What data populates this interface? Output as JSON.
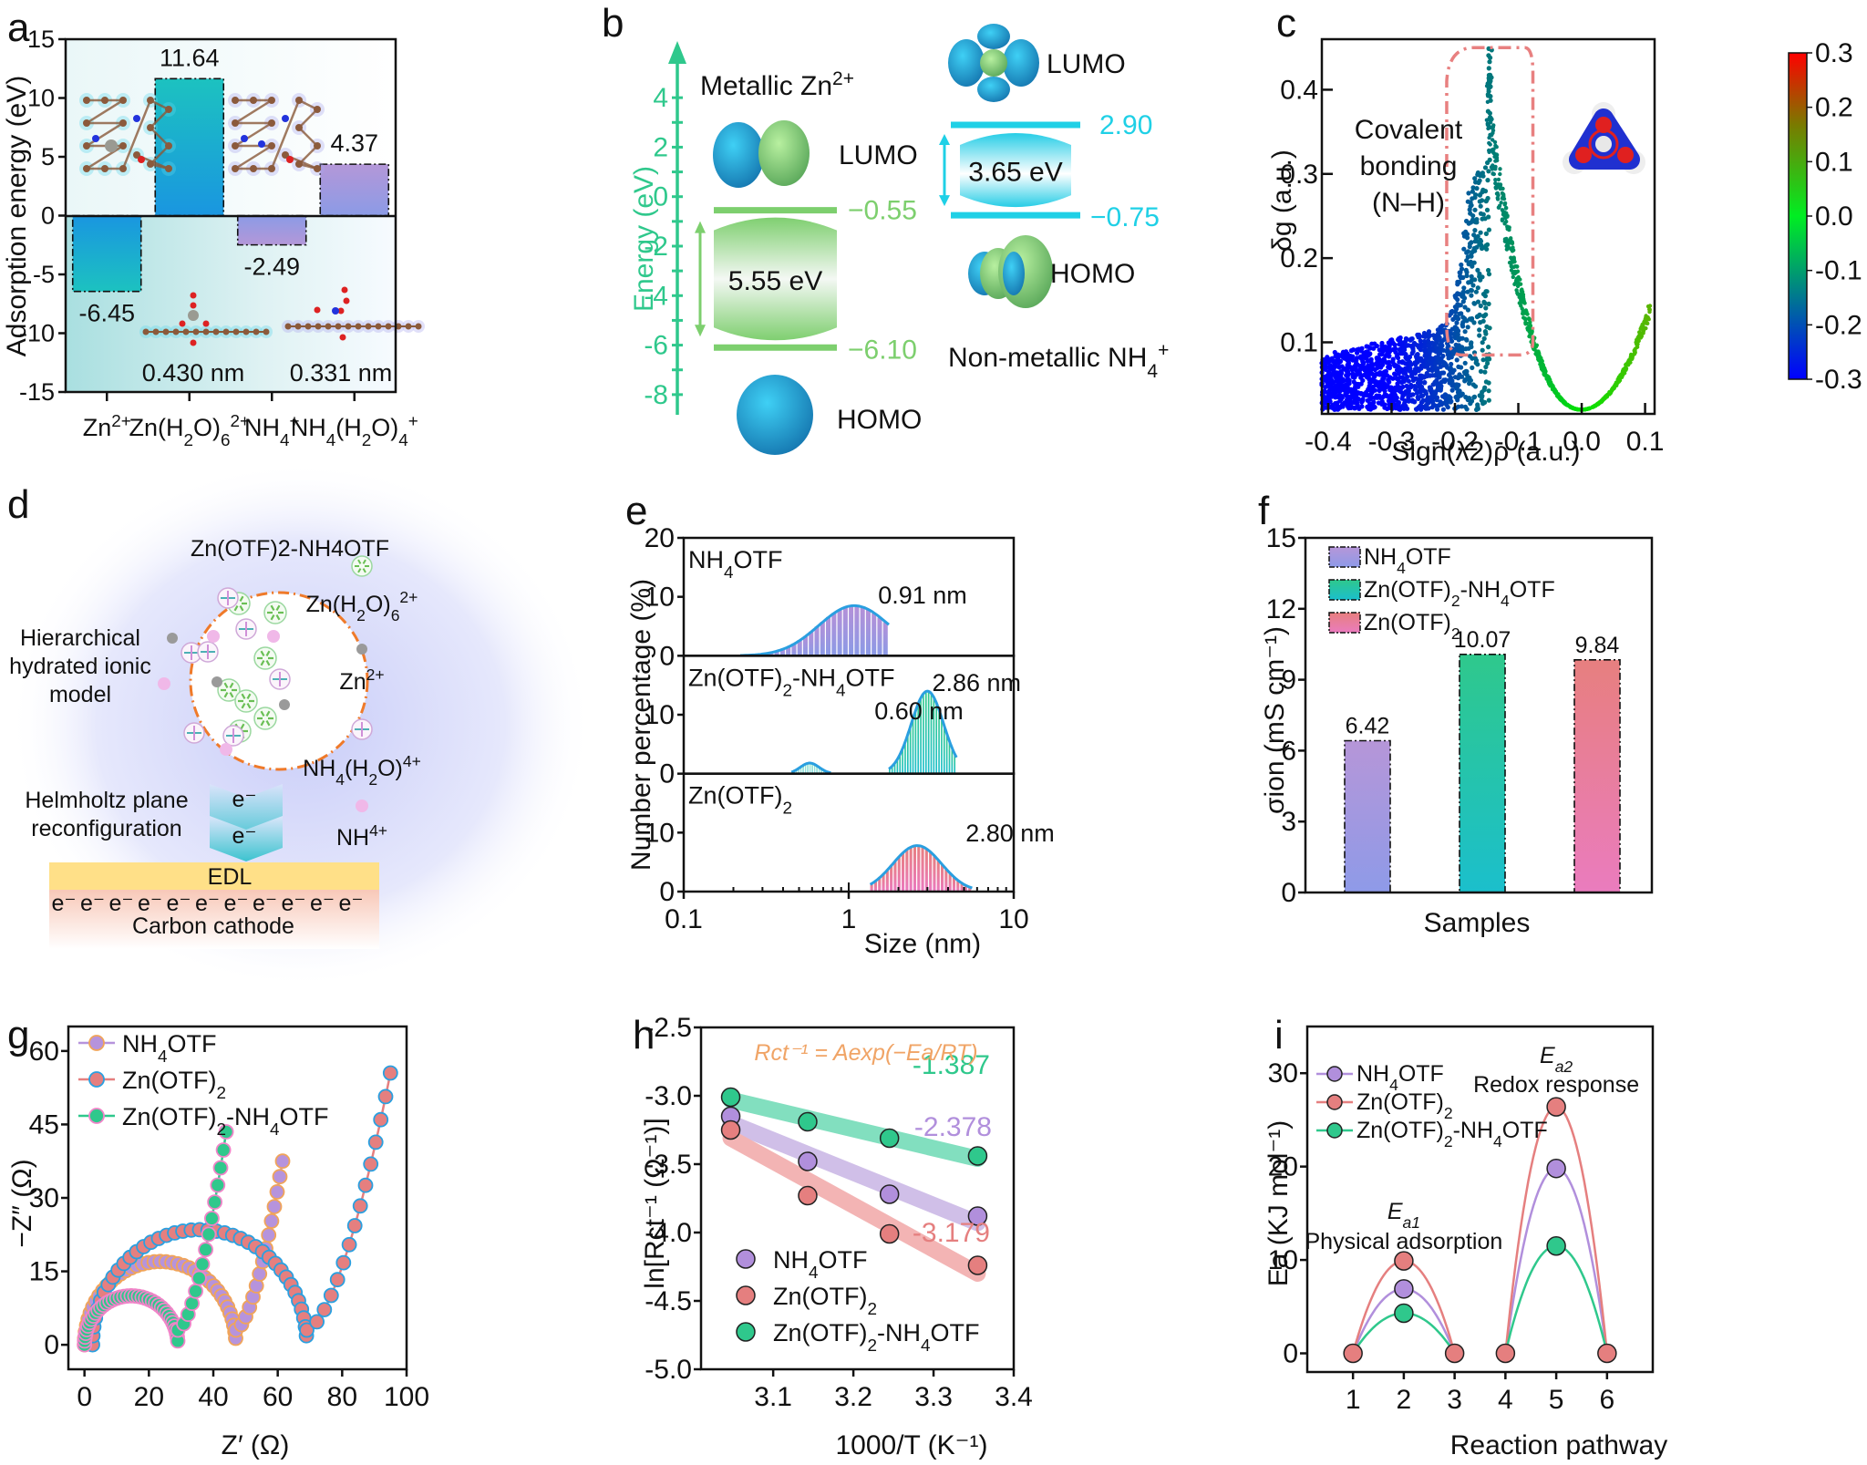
{
  "panels": {
    "a": {
      "label": "a",
      "chart_data": {
        "type": "bar",
        "ylabel": "Adsorption energy (eV)",
        "ylim": [
          -15,
          15
        ],
        "yticks": [
          15,
          10,
          5,
          0,
          -5,
          -10,
          -15
        ],
        "categories": [
          "Zn2+",
          "Zn(H2O)6 2+",
          "NH4+",
          "NH4(H2O)4+"
        ],
        "category_labels": [
          {
            "base": "Zn",
            "sup": "2+"
          },
          {
            "base": "Zn(H",
            "sub1": "2",
            "mid": "O)",
            "sub2": "6",
            "sup": "2+"
          },
          {
            "base": "NH",
            "sub1": "4",
            "sup": "+"
          },
          {
            "base": "NH",
            "sub1": "4",
            "mid": "(H",
            "sub2": "2",
            "mid2": "O)",
            "sub3": "4",
            "sup": "+"
          }
        ],
        "values": [
          -6.45,
          11.64,
          -2.49,
          4.37
        ],
        "value_labels": [
          "-6.45",
          "11.64",
          "-2.49",
          "4.37"
        ],
        "annotations": [
          "0.430 nm",
          "0.331 nm"
        ]
      }
    },
    "b": {
      "label": "b",
      "chart_data": {
        "type": "diagram",
        "ylabel": "Energy (eV)",
        "ylim": [
          -9,
          5
        ],
        "yticks": [
          4,
          2,
          0,
          -2,
          -4,
          -6,
          -8
        ],
        "systems": [
          {
            "name": "Metallic Zn2+",
            "lumo": -0.55,
            "homo": -6.1,
            "gap_label": "5.55 eV",
            "lumo_label": "−0.55",
            "homo_label": "−6.10",
            "color": "#7dcf6e"
          },
          {
            "name": "Non-metallic NH4+",
            "lumo": 2.9,
            "homo": -0.75,
            "gap_label": "3.65 eV",
            "lumo_label": "2.90",
            "homo_label": "−0.75",
            "color": "#1fd0e6"
          }
        ],
        "orbital_labels": [
          "LUMO",
          "HOMO",
          "LUMO",
          "HOMO"
        ],
        "title_metallic": "Metallic Zn",
        "title_metallic_sup": "2+",
        "title_nonmetallic": "Non-metallic NH",
        "title_nonmetallic_sub": "4",
        "title_nonmetallic_sup": "+"
      }
    },
    "c": {
      "label": "c",
      "chart_data": {
        "type": "scatter",
        "xlabel": "Sign(λ2)ρ (a.u.)",
        "ylabel": "δg (a.u.)",
        "xlim": [
          -0.41,
          0.115
        ],
        "ylim": [
          0.015,
          0.46
        ],
        "xticks": [
          -0.4,
          -0.3,
          -0.2,
          -0.1,
          0.0,
          0.1
        ],
        "xtick_labels": [
          "-0.4",
          "-0.3",
          "-0.2",
          "-0.1",
          "0.0",
          "0.1"
        ],
        "yticks": [
          0.1,
          0.2,
          0.3,
          0.4
        ],
        "ytick_labels": [
          "0.1",
          "0.2",
          "0.3",
          "0.4"
        ],
        "colorbar": {
          "min": -0.3,
          "max": 0.3,
          "ticks": [
            "0.3",
            "0.2",
            "0.1",
            "0.0",
            "-0.1",
            "-0.2",
            "-0.3"
          ]
        },
        "annotation": [
          "Covalent",
          "bonding",
          "(N–H)"
        ],
        "peak": {
          "x": -0.145,
          "y": 0.45
        }
      }
    },
    "d": {
      "label": "d",
      "title": "Zn(OTF)2-NH4OTF",
      "left_text": [
        "Hierarchical",
        "hydrated ionic",
        "model"
      ],
      "helmholtz_text": [
        "Helmholtz plane",
        "reconfiguration"
      ],
      "legend": [
        "Zn(H2O)6 2+",
        "Zn2+",
        "NH4(H2O)4+",
        "NH4+"
      ],
      "edl_label": "EDL",
      "cathode_label": "Carbon cathode",
      "electron": "e⁻",
      "electron_count": 11
    },
    "e": {
      "label": "e",
      "chart_data": {
        "type": "area",
        "xscale": "log",
        "xlabel": "Size (nm)",
        "ylabel": "Number percentage (%)",
        "xlim": [
          0.1,
          10
        ],
        "xtick_labels": [
          "0.1",
          "1",
          "10"
        ],
        "series": [
          {
            "name": "NH4OTF",
            "peak_label": "0.91 nm",
            "ylim": [
              0,
              20
            ],
            "yticks": [
              "20",
              "10",
              "0"
            ],
            "peaks": [
              {
                "center": 1.08,
                "height": 8.5,
                "min": 0.22,
                "max": 1.75
              }
            ],
            "color_top": "#b490d8",
            "color_bottom": "#8a9ae6"
          },
          {
            "name": "Zn(OTF)2-NH4OTF",
            "peak_labels": [
              "0.60 nm",
              "2.86 nm"
            ],
            "ylim": [
              0,
              20
            ],
            "yticks": [
              "10",
              "0"
            ],
            "peaks": [
              {
                "center": 0.58,
                "height": 1.8,
                "min": 0.45,
                "max": 0.78
              },
              {
                "center": 3.0,
                "height": 14,
                "min": 1.75,
                "max": 4.5
              }
            ],
            "color_top": "#34c98a",
            "color_bottom": "#1bbfcc"
          },
          {
            "name": "Zn(OTF)2",
            "peak_label": "2.80 nm",
            "ylim": [
              0,
              20
            ],
            "yticks": [
              "10",
              "0"
            ],
            "peaks": [
              {
                "center": 2.6,
                "height": 7.8,
                "min": 1.35,
                "max": 5.6
              }
            ],
            "color_top": "#e87f7f",
            "color_bottom": "#ea7ac0"
          }
        ]
      }
    },
    "f": {
      "label": "f",
      "chart_data": {
        "type": "bar",
        "xlabel": "Samples",
        "ylabel": "σion (mS cm⁻¹)",
        "ylim": [
          0,
          15
        ],
        "yticks": [
          0,
          3,
          6,
          9,
          12,
          15
        ],
        "categories": [
          "NH4OTF",
          "Zn(OTF)2-NH4OTF",
          "Zn(OTF)2"
        ],
        "values": [
          6.42,
          10.07,
          9.84
        ],
        "value_labels": [
          "6.42",
          "10.07",
          "9.84"
        ],
        "colors": [
          [
            "#b696d8",
            "#8e9ae8"
          ],
          [
            "#2fc88c",
            "#1bbfcc"
          ],
          [
            "#e77f7f",
            "#ea7cbe"
          ]
        ],
        "legend": [
          "NH4OTF",
          "Zn(OTF)2-NH4OTF",
          "Zn(OTF)2"
        ]
      }
    },
    "g": {
      "label": "g",
      "chart_data": {
        "type": "scatter",
        "xlabel": "Z′ (Ω)",
        "ylabel": "−Z″ (Ω)",
        "xlim": [
          -5,
          100
        ],
        "ylim": [
          -5,
          65
        ],
        "xticks": [
          0,
          20,
          40,
          60,
          80,
          100
        ],
        "yticks": [
          0,
          15,
          30,
          45,
          60
        ],
        "series": [
          {
            "name": "NH4OTF",
            "fill": "#b693dc",
            "edge": "#f0a45a",
            "line": "#b693dc",
            "rs": 0,
            "rct": 47,
            "peak": 17,
            "tail_end": [
              61.5,
              37.5
            ]
          },
          {
            "name": "Zn(OTF)2",
            "fill": "#e57f7f",
            "edge": "#2aa0e0",
            "line": "#e57f7f",
            "rs": 2.5,
            "rct": 69,
            "peak": 23.5,
            "tail_end": [
              95,
              55.5
            ]
          },
          {
            "name": "Zn(OTF)2-NH4OTF",
            "fill": "#2fc88c",
            "edge": "#f084c8",
            "line": "#2fc88c",
            "rs": 0,
            "rct": 29,
            "peak": 10,
            "tail_end": [
              44,
              43.5
            ]
          }
        ]
      }
    },
    "h": {
      "label": "h",
      "chart_data": {
        "type": "scatter",
        "xlabel": "1000/T (K⁻¹)",
        "ylabel": "ln[Rct⁻¹ (Ω⁻¹)]",
        "xlim": [
          3.01,
          3.4
        ],
        "ylim": [
          -5.0,
          -2.5
        ],
        "xticks": [
          3.1,
          3.2,
          3.3,
          3.4
        ],
        "yticks": [
          -2.5,
          -3.0,
          -3.5,
          -4.0,
          -4.5,
          -5.0
        ],
        "ytick_labels": [
          "-2.5",
          "-3.0",
          "-3.5",
          "-4.0",
          "-4.5",
          "-5.0"
        ],
        "equation": "Rct⁻¹ = Aexp(−Ea/RT)",
        "x": [
          3.047,
          3.143,
          3.245,
          3.355
        ],
        "series": [
          {
            "name": "NH4OTF",
            "y": [
              -3.15,
              -3.48,
              -3.72,
              -3.88
            ],
            "fit": [
              -3.2,
              -3.93
            ],
            "slope_label": "-2.378",
            "color": "#b18fdc",
            "band": "#d0bfe8"
          },
          {
            "name": "Zn(OTF)2",
            "y": [
              -3.25,
              -3.73,
              -4.01,
              -4.24
            ],
            "fit": [
              -3.31,
              -4.3
            ],
            "slope_label": "-3.179",
            "color": "#e57f7f",
            "band": "#f3b4b4"
          },
          {
            "name": "Zn(OTF)2-NH4OTF",
            "y": [
              -3.01,
              -3.19,
              -3.31,
              -3.44
            ],
            "fit": [
              -3.03,
              -3.46
            ],
            "slope_label": "-1.387",
            "color": "#2fc88c",
            "band": "#82dfbf"
          }
        ]
      }
    },
    "i": {
      "label": "i",
      "chart_data": {
        "type": "line",
        "xlabel": "Reaction pathway",
        "ylabel": "Ea (KJ mol⁻¹)",
        "xlim": [
          0.1,
          6.9
        ],
        "ylim": [
          -2,
          35
        ],
        "xticks": [
          1,
          2,
          3,
          4,
          5,
          6
        ],
        "yticks": [
          0,
          10,
          20,
          30
        ],
        "x": [
          1,
          2,
          3,
          4,
          5,
          6
        ],
        "series": [
          {
            "name": "NH4OTF",
            "y": [
              0,
              6.9,
              0,
              0,
              19.8,
              0
            ],
            "color": "#b18fdc"
          },
          {
            "name": "Zn(OTF)2",
            "y": [
              0,
              9.9,
              0,
              0,
              26.4,
              0
            ],
            "color": "#e57f7f"
          },
          {
            "name": "Zn(OTF)2-NH4OTF",
            "y": [
              0,
              4.3,
              0,
              0,
              11.5,
              0
            ],
            "color": "#2fc88c"
          }
        ],
        "annotations": [
          {
            "sym": "E",
            "sub": "a1",
            "text": "Physical adsorption"
          },
          {
            "sym": "E",
            "sub": "a2",
            "text": "Redox response"
          }
        ]
      }
    }
  }
}
